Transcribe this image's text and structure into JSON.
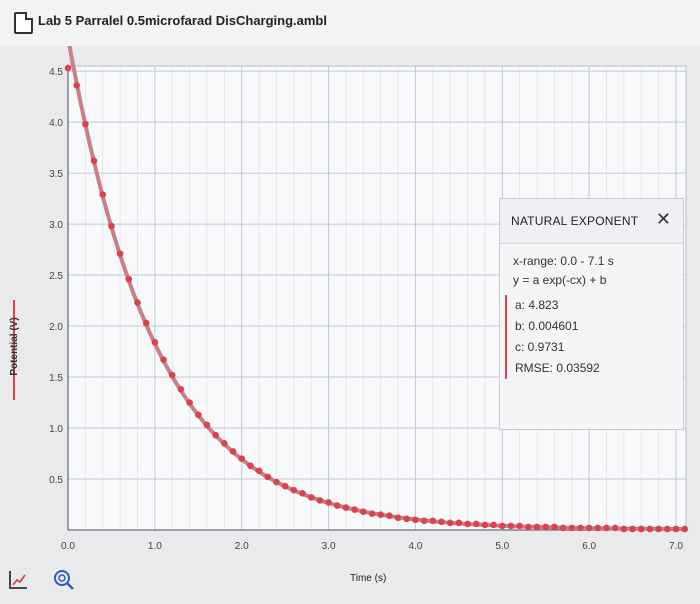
{
  "document": {
    "title": "Lab 5 Parralel 0.5microfarad DisCharging.ambl"
  },
  "chart_data": {
    "type": "scatter",
    "xlabel": "Time (s)",
    "ylabel": "Potential (V)",
    "xlim": [
      0,
      7.1
    ],
    "ylim": [
      0,
      4.55
    ],
    "x_ticks": [
      0.0,
      1.0,
      2.0,
      3.0,
      4.0,
      5.0,
      6.0,
      7.0
    ],
    "x_tick_labels": [
      "0.0",
      "1.0",
      "2.0",
      "3.0",
      "4.0",
      "5.0",
      "6.0",
      "7.0"
    ],
    "y_ticks": [
      0.5,
      1.0,
      1.5,
      2.0,
      2.5,
      3.0,
      3.5,
      4.0,
      4.5
    ],
    "y_tick_labels": [
      "0.5",
      "1.0",
      "1.5",
      "2.0",
      "2.5",
      "3.0",
      "3.5",
      "4.0",
      "4.5"
    ],
    "grid": true,
    "sample_interval": 0.1,
    "fit": {
      "model": "y = a exp(-cx) + b",
      "a": 4.823,
      "b": 0.004601,
      "c": 0.9731,
      "x_range": [
        0.0,
        7.1
      ]
    },
    "series": [
      {
        "color": "#d8434f",
        "x": [
          0.0,
          0.1,
          0.2,
          0.3,
          0.4,
          0.5,
          0.6,
          0.7,
          0.8,
          0.9,
          1.0,
          1.1,
          1.2,
          1.3,
          1.4,
          1.5,
          1.6,
          1.7,
          1.8,
          1.9,
          2.0,
          2.1,
          2.2,
          2.3,
          2.4,
          2.5,
          2.6,
          2.7,
          2.8,
          2.9,
          3.0,
          3.1,
          3.2,
          3.3,
          3.4,
          3.5,
          3.6,
          3.7,
          3.8,
          3.9,
          4.0,
          4.1,
          4.2,
          4.3,
          4.4,
          4.5,
          4.6,
          4.7,
          4.8,
          4.9,
          5.0,
          5.1,
          5.2,
          5.3,
          5.4,
          5.5,
          5.6,
          5.7,
          5.8,
          5.9,
          6.0,
          6.1,
          6.2,
          6.3,
          6.4,
          6.5,
          6.6,
          6.7,
          6.8,
          6.9,
          7.0,
          7.1
        ],
        "y": [
          4.53,
          4.36,
          3.98,
          3.62,
          3.29,
          2.98,
          2.71,
          2.46,
          2.23,
          2.03,
          1.84,
          1.67,
          1.52,
          1.38,
          1.25,
          1.13,
          1.03,
          0.93,
          0.85,
          0.77,
          0.7,
          0.63,
          0.58,
          0.52,
          0.47,
          0.43,
          0.39,
          0.36,
          0.32,
          0.29,
          0.27,
          0.24,
          0.22,
          0.2,
          0.18,
          0.16,
          0.15,
          0.14,
          0.12,
          0.11,
          0.1,
          0.09,
          0.09,
          0.08,
          0.07,
          0.07,
          0.06,
          0.06,
          0.05,
          0.05,
          0.04,
          0.04,
          0.04,
          0.03,
          0.03,
          0.03,
          0.03,
          0.02,
          0.02,
          0.02,
          0.02,
          0.02,
          0.02,
          0.02,
          0.01,
          0.01,
          0.01,
          0.01,
          0.01,
          0.01,
          0.01,
          0.01
        ]
      }
    ]
  },
  "fit_panel": {
    "title": "NATURAL EXPONENT",
    "close_icon": "close-icon",
    "x_range": "x-range: 0.0 - 7.1 s",
    "equation": "y = a exp(-cx) + b",
    "param_a": "a: 4.823",
    "param_b": "b: 0.004601",
    "param_c": "c: 0.9731",
    "rmse": "RMSE: 0.03592",
    "accent_color": "#d8434f"
  },
  "toolbar": {
    "graph_tool_icon": "graph-options-icon",
    "zoom_icon": "zoom-icon"
  },
  "colors": {
    "data": "#d8434f",
    "fit_line": "#c97f8a",
    "grid": "#c3c8d6",
    "plot_bg": "#f8f9fb"
  }
}
